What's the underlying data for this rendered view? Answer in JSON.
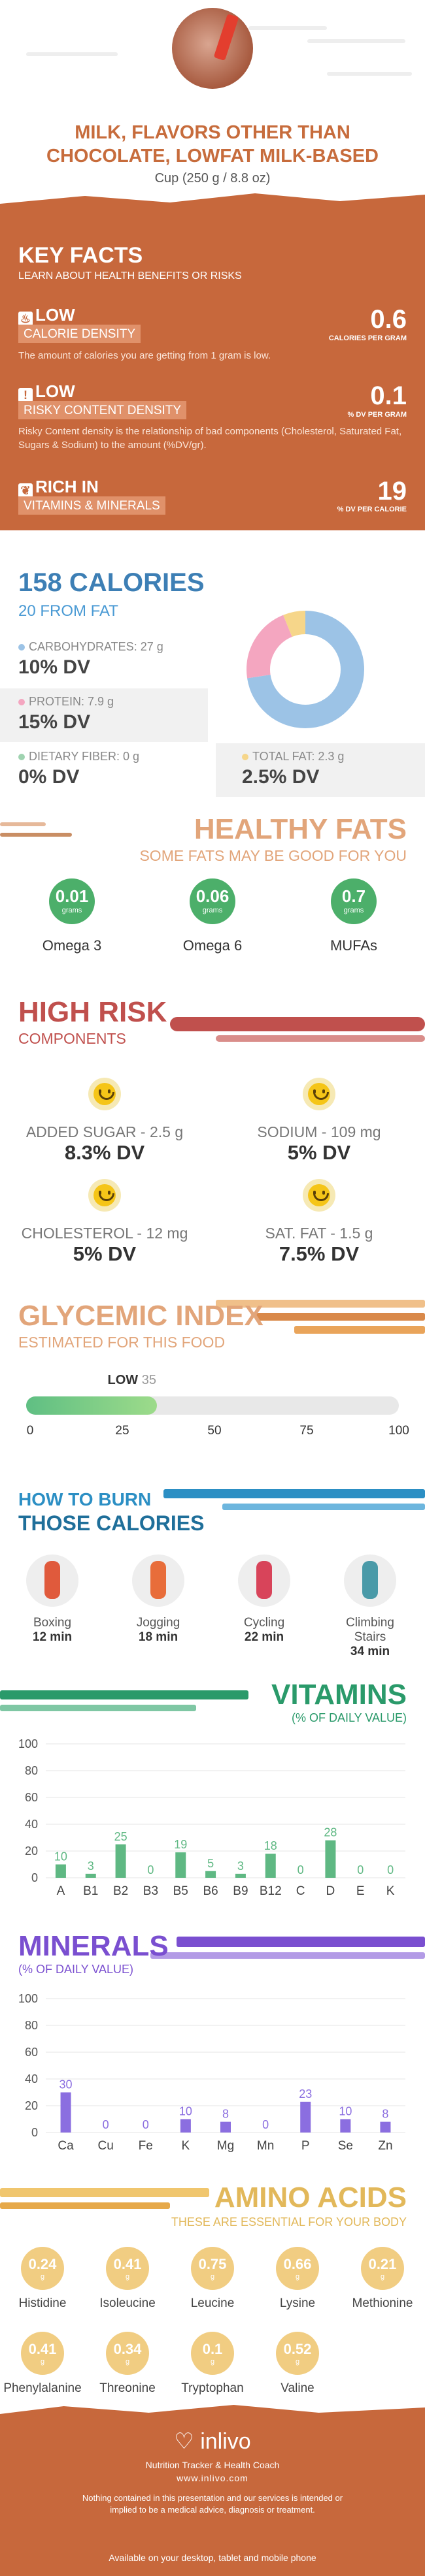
{
  "header": {
    "title": "MILK, FLAVORS OTHER THAN CHOCOLATE, LOWFAT MILK-BASED",
    "serving": "Cup (250 g / 8.8 oz)"
  },
  "key_facts": {
    "title": "KEY FACTS",
    "subtitle": "LEARN ABOUT HEALTH BENEFITS OR RISKS",
    "calorie": {
      "level": "LOW",
      "label": "CALORIE DENSITY",
      "value": "0.6",
      "unit": "CALORIES PER GRAM",
      "desc": "The amount of calories you are getting from 1 gram is low."
    },
    "risky": {
      "level": "LOW",
      "label": "RISKY CONTENT DENSITY",
      "value": "0.1",
      "unit": "% DV PER GRAM",
      "desc": "Risky Content density is the relationship of bad components (Cholesterol, Saturated Fat, Sugars & Sodium) to the amount (%DV/gr)."
    },
    "rich": {
      "level": "RICH IN",
      "label": "VITAMINS & MINERALS",
      "value": "19",
      "unit": "% DV PER CALORIE"
    }
  },
  "calories": {
    "title": "158 CALORIES",
    "fat_line": "20 FROM FAT",
    "carbs": {
      "label": "CARBOHYDRATES: 27 g",
      "dv": "10% DV"
    },
    "protein": {
      "label": "PROTEIN: 7.9 g",
      "dv": "15% DV"
    },
    "fiber": {
      "label": "DIETARY FIBER: 0 g",
      "dv": "0% DV"
    },
    "fat": {
      "label": "TOTAL FAT: 2.3 g",
      "dv": "2.5% DV"
    },
    "donut": {
      "carbs": 27,
      "protein": 7.9,
      "fat": 2.3,
      "colors": {
        "carbs": "#9cc3e6",
        "protein": "#f4a6c0",
        "fat": "#f6d68a"
      }
    }
  },
  "healthy_fats": {
    "title": "HEALTHY FATS",
    "subtitle": "SOME FATS MAY BE GOOD FOR YOU",
    "items": [
      {
        "value": "0.01",
        "unit": "grams",
        "name": "Omega 3"
      },
      {
        "value": "0.06",
        "unit": "grams",
        "name": "Omega 6"
      },
      {
        "value": "0.7",
        "unit": "grams",
        "name": "MUFAs"
      }
    ]
  },
  "high_risk": {
    "title": "HIGH RISK",
    "subtitle": "COMPONENTS",
    "items": [
      {
        "label": "ADDED SUGAR - 2.5 g",
        "dv": "8.3% DV"
      },
      {
        "label": "SODIUM - 109 mg",
        "dv": "5% DV"
      },
      {
        "label": "CHOLESTEROL - 12 mg",
        "dv": "5% DV"
      },
      {
        "label": "SAT. FAT - 1.5 g",
        "dv": "7.5% DV"
      }
    ]
  },
  "glycemic": {
    "title": "GLYCEMIC INDEX",
    "subtitle": "ESTIMATED FOR THIS FOOD",
    "level": "LOW",
    "value": 35,
    "value_label": "35",
    "ticks": [
      "0",
      "25",
      "50",
      "75",
      "100"
    ]
  },
  "burn": {
    "line1": "HOW TO BURN",
    "line2": "THOSE CALORIES",
    "items": [
      {
        "name": "Boxing",
        "time": "12 min"
      },
      {
        "name": "Jogging",
        "time": "18 min"
      },
      {
        "name": "Cycling",
        "time": "22 min"
      },
      {
        "name": "Climbing Stairs",
        "time": "34 min"
      }
    ]
  },
  "vitamins": {
    "title": "VITAMINS",
    "subtitle": "(% OF DAILY VALUE)"
  },
  "minerals": {
    "title": "MINERALS",
    "subtitle": "(% OF DAILY VALUE)"
  },
  "chart_data": [
    {
      "type": "bar",
      "title": "VITAMINS",
      "categories": [
        "A",
        "B1",
        "B2",
        "B3",
        "B5",
        "B6",
        "B9",
        "B12",
        "C",
        "D",
        "E",
        "K"
      ],
      "values": [
        10,
        3,
        25,
        0,
        19,
        5,
        3,
        18,
        0,
        28,
        0,
        0
      ],
      "ylim": [
        0,
        100
      ],
      "yticks": [
        0,
        20,
        40,
        60,
        80,
        100
      ],
      "color": "#5fb883"
    },
    {
      "type": "bar",
      "title": "MINERALS",
      "categories": [
        "Ca",
        "Cu",
        "Fe",
        "K",
        "Mg",
        "Mn",
        "P",
        "Se",
        "Zn"
      ],
      "values": [
        30,
        0,
        0,
        10,
        8,
        0,
        23,
        10,
        8
      ],
      "ylim": [
        0,
        100
      ],
      "yticks": [
        0,
        20,
        40,
        60,
        80,
        100
      ],
      "color": "#8b6ee0"
    }
  ],
  "amino": {
    "title": "AMINO ACIDS",
    "subtitle": "THESE ARE ESSENTIAL FOR YOUR BODY",
    "items": [
      {
        "v": "0.24",
        "n": "Histidine"
      },
      {
        "v": "0.41",
        "n": "Isoleucine"
      },
      {
        "v": "0.75",
        "n": "Leucine"
      },
      {
        "v": "0.66",
        "n": "Lysine"
      },
      {
        "v": "0.21",
        "n": "Methionine"
      },
      {
        "v": "0.41",
        "n": "Phenylalanine"
      },
      {
        "v": "0.34",
        "n": "Threonine"
      },
      {
        "v": "0.1",
        "n": "Tryptophan"
      },
      {
        "v": "0.52",
        "n": "Valine"
      }
    ],
    "unit": "g"
  },
  "footer": {
    "logo": "inlivo",
    "tagline": "Nutrition Tracker & Health Coach",
    "url": "www.inlivo.com",
    "disclaimer": "Nothing contained in this presentation and our services is intended or implied to be a medical advice, diagnosis or treatment.",
    "available": "Available on your desktop, tablet and mobile phone"
  }
}
